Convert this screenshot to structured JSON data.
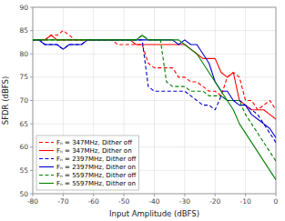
{
  "chart_data": {
    "type": "line",
    "xlabel": "Input Amplitude (dBFS)",
    "ylabel": "SFDR (dBFS)",
    "xlim": [
      -80,
      0
    ],
    "ylim": [
      50,
      90
    ],
    "xticks": [
      -80,
      -70,
      -60,
      -50,
      -40,
      -30,
      -20,
      -10,
      0
    ],
    "yticks": [
      50,
      55,
      60,
      65,
      70,
      75,
      80,
      85,
      90
    ],
    "grid": true,
    "legend": "lower left",
    "x": [
      -80,
      -78,
      -76,
      -74,
      -72,
      -70,
      -68,
      -66,
      -64,
      -62,
      -60,
      -58,
      -56,
      -54,
      -52,
      -50,
      -48,
      -46,
      -44,
      -42,
      -40,
      -38,
      -36,
      -34,
      -32,
      -30,
      -28,
      -26,
      -24,
      -22,
      -20,
      -18,
      -16,
      -14,
      -12,
      -10,
      -8,
      -6,
      -4,
      -2,
      0
    ],
    "series": [
      {
        "name": "Fₙ = 347MHz, Dither off",
        "color": "#ff0000",
        "line_style": "dashed",
        "values": [
          83,
          83,
          83,
          84,
          84,
          85,
          84,
          83,
          83,
          83,
          83,
          83,
          83,
          83,
          82,
          82,
          82,
          82,
          82,
          78,
          77,
          77,
          77,
          77,
          75,
          75,
          74,
          74,
          73,
          72,
          72,
          71,
          75,
          76,
          75,
          70,
          70,
          68,
          69,
          70,
          68
        ]
      },
      {
        "name": "Fₙ = 347MHz, Dither on",
        "color": "#ff0000",
        "line_style": "solid",
        "values": [
          83,
          83,
          83,
          84,
          83,
          83,
          83,
          83,
          83,
          83,
          83,
          83,
          83,
          83,
          83,
          83,
          83,
          82,
          82,
          82,
          82,
          82,
          82,
          82,
          82,
          82,
          81,
          80,
          79,
          79,
          79,
          76,
          75,
          76,
          70,
          69,
          68,
          68,
          68,
          67,
          66
        ]
      },
      {
        "name": "Fₙ = 2397MHz, Dither off",
        "color": "#0000cc",
        "line_style": "dashed",
        "values": [
          83,
          83,
          82,
          82,
          82,
          81,
          82,
          82,
          82,
          83,
          83,
          83,
          83,
          83,
          83,
          83,
          83,
          83,
          83,
          73,
          72,
          72,
          72,
          72,
          72,
          72,
          71,
          70,
          69,
          69,
          68,
          71,
          70,
          70,
          70,
          69,
          68,
          67,
          65,
          63,
          61
        ]
      },
      {
        "name": "Fₙ = 2397MHz, Dither on",
        "color": "#0000cc",
        "line_style": "solid",
        "values": [
          83,
          83,
          82,
          82,
          82,
          81,
          82,
          82,
          82,
          83,
          83,
          83,
          83,
          83,
          83,
          83,
          83,
          83,
          83,
          83,
          83,
          83,
          83,
          83,
          82,
          83,
          82,
          82,
          80,
          78,
          74,
          72,
          72,
          70,
          69,
          69,
          67,
          66,
          65,
          64,
          62
        ]
      },
      {
        "name": "Fₙ = 5597MHz, Dither off",
        "color": "#008000",
        "line_style": "dashed",
        "values": [
          83,
          83,
          83,
          83,
          83,
          83,
          83,
          83,
          83,
          83,
          83,
          83,
          83,
          83,
          83,
          83,
          83,
          83,
          84,
          83,
          83,
          83,
          74,
          73,
          73,
          73,
          72,
          72,
          72,
          71,
          71,
          71,
          70,
          70,
          70,
          67,
          65,
          63,
          61,
          59,
          57
        ]
      },
      {
        "name": "Fₙ = 5597MHz, Dither on",
        "color": "#008000",
        "line_style": "solid",
        "values": [
          83,
          83,
          83,
          83,
          83,
          83,
          83,
          83,
          83,
          83,
          83,
          83,
          83,
          83,
          83,
          83,
          83,
          83,
          84,
          83,
          83,
          83,
          83,
          83,
          83,
          82,
          81,
          80,
          78,
          76,
          74,
          72,
          70,
          68,
          65,
          63,
          61,
          59,
          57,
          55,
          53
        ]
      }
    ]
  }
}
